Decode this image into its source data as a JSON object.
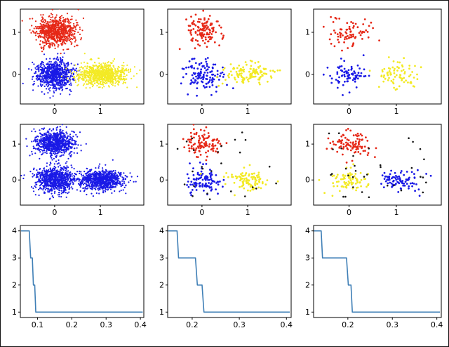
{
  "figure": {
    "background": "#ffffff",
    "border_color": "#111111",
    "rows": 3,
    "cols": 3
  },
  "colors": {
    "red": "#e62817",
    "blue": "#1a1ae6",
    "yellow": "#f3ea25",
    "black": "#161616",
    "line": "#3f7fb6",
    "axis": "#000000"
  },
  "chart_data": [
    {
      "name": "scatter-dense-3clusters",
      "type": "scatter",
      "seed": 11,
      "xlim": [
        -0.75,
        1.95
      ],
      "ylim": [
        -0.7,
        1.55
      ],
      "xticks": [
        0,
        1
      ],
      "yticks": [
        0,
        1
      ],
      "clusters": [
        {
          "label": "red-cluster",
          "color": "#e62817",
          "dist": "normal",
          "cx": 0.02,
          "cy": 1.03,
          "sx": 0.21,
          "sy": 0.17,
          "n": 800,
          "r": 1.1
        },
        {
          "label": "blue-cluster",
          "color": "#1a1ae6",
          "dist": "normal",
          "cx": 0.0,
          "cy": 0.0,
          "sx": 0.21,
          "sy": 0.17,
          "n": 800,
          "r": 1.1
        },
        {
          "label": "yellow-cluster",
          "color": "#f3ea25",
          "dist": "normal",
          "cx": 1.03,
          "cy": 0.0,
          "sx": 0.27,
          "sy": 0.13,
          "n": 800,
          "r": 1.1
        }
      ]
    },
    {
      "name": "scatter-sample-3clusters",
      "type": "scatter",
      "seed": 23,
      "xlim": [
        -0.75,
        1.95
      ],
      "ylim": [
        -0.7,
        1.55
      ],
      "xticks": [
        0,
        1
      ],
      "yticks": [
        0,
        1
      ],
      "clusters": [
        {
          "label": "red-cluster",
          "color": "#e62817",
          "dist": "normal",
          "cx": 0.03,
          "cy": 1.03,
          "sx": 0.2,
          "sy": 0.19,
          "n": 120,
          "r": 1.4
        },
        {
          "label": "blue-cluster",
          "color": "#1a1ae6",
          "dist": "normal",
          "cx": 0.0,
          "cy": -0.02,
          "sx": 0.2,
          "sy": 0.19,
          "n": 120,
          "r": 1.4
        },
        {
          "label": "yellow-cluster",
          "color": "#f3ea25",
          "dist": "normal",
          "cx": 1.02,
          "cy": 0.0,
          "sx": 0.24,
          "sy": 0.14,
          "n": 120,
          "r": 1.4
        }
      ]
    },
    {
      "name": "scatter-small-sample-3clusters",
      "type": "scatter",
      "seed": 37,
      "xlim": [
        -0.75,
        1.95
      ],
      "ylim": [
        -0.7,
        1.55
      ],
      "xticks": [
        0,
        1
      ],
      "yticks": [
        0,
        1
      ],
      "clusters": [
        {
          "label": "red-cluster",
          "color": "#e62817",
          "dist": "normal",
          "cx": 0.03,
          "cy": 1.02,
          "sx": 0.21,
          "sy": 0.18,
          "n": 78,
          "r": 1.4
        },
        {
          "label": "blue-cluster",
          "color": "#1a1ae6",
          "dist": "normal",
          "cx": 0.0,
          "cy": -0.02,
          "sx": 0.2,
          "sy": 0.17,
          "n": 78,
          "r": 1.4
        },
        {
          "label": "yellow-cluster",
          "color": "#f3ea25",
          "dist": "normal",
          "cx": 1.03,
          "cy": -0.02,
          "sx": 0.24,
          "sy": 0.14,
          "n": 78,
          "r": 1.4
        }
      ]
    },
    {
      "name": "scatter-dense-unlabeled",
      "type": "scatter",
      "seed": 47,
      "xlim": [
        -0.75,
        1.95
      ],
      "ylim": [
        -0.7,
        1.55
      ],
      "xticks": [
        0,
        1
      ],
      "yticks": [
        0,
        1
      ],
      "clusters": [
        {
          "label": "blue-cluster-top",
          "color": "#1a1ae6",
          "dist": "normal",
          "cx": 0.02,
          "cy": 1.03,
          "sx": 0.21,
          "sy": 0.18,
          "n": 800,
          "r": 1.1
        },
        {
          "label": "blue-cluster-left",
          "color": "#1a1ae6",
          "dist": "normal",
          "cx": 0.0,
          "cy": 0.0,
          "sx": 0.21,
          "sy": 0.18,
          "n": 800,
          "r": 1.1
        },
        {
          "label": "blue-cluster-right",
          "color": "#1a1ae6",
          "dist": "normal",
          "cx": 1.03,
          "cy": 0.0,
          "sx": 0.26,
          "sy": 0.14,
          "n": 800,
          "r": 1.1
        }
      ]
    },
    {
      "name": "scatter-clustered-with-noise",
      "type": "scatter",
      "seed": 59,
      "xlim": [
        -0.75,
        1.95
      ],
      "ylim": [
        -0.7,
        1.55
      ],
      "xticks": [
        0,
        1
      ],
      "yticks": [
        0,
        1
      ],
      "clusters": [
        {
          "label": "red-cluster",
          "color": "#e62817",
          "dist": "normal",
          "cx": 0.03,
          "cy": 1.02,
          "sx": 0.2,
          "sy": 0.18,
          "n": 105,
          "r": 1.4
        },
        {
          "label": "blue-cluster",
          "color": "#1a1ae6",
          "dist": "normal",
          "cx": 0.0,
          "cy": -0.02,
          "sx": 0.2,
          "sy": 0.18,
          "n": 105,
          "r": 1.4
        },
        {
          "label": "yellow-cluster",
          "color": "#f3ea25",
          "dist": "normal",
          "cx": 1.02,
          "cy": 0.0,
          "sx": 0.24,
          "sy": 0.14,
          "n": 105,
          "r": 1.4
        },
        {
          "label": "noise-points",
          "color": "#161616",
          "dist": "uniform",
          "x0": -0.6,
          "x1": 1.8,
          "y0": -0.6,
          "y1": 1.45,
          "n": 26,
          "r": 1.3
        }
      ]
    },
    {
      "name": "scatter-clustered-with-noise-2",
      "type": "scatter",
      "seed": 71,
      "xlim": [
        -0.75,
        1.95
      ],
      "ylim": [
        -0.7,
        1.55
      ],
      "xticks": [
        0,
        1
      ],
      "yticks": [
        0,
        1
      ],
      "clusters": [
        {
          "label": "red-cluster",
          "color": "#e62817",
          "dist": "normal",
          "cx": 0.04,
          "cy": 1.0,
          "sx": 0.23,
          "sy": 0.17,
          "n": 95,
          "r": 1.4
        },
        {
          "label": "yellow-cluster",
          "color": "#f3ea25",
          "dist": "normal",
          "cx": 0.03,
          "cy": 0.0,
          "sx": 0.22,
          "sy": 0.15,
          "n": 82,
          "r": 1.4
        },
        {
          "label": "blue-cluster",
          "color": "#1a1ae6",
          "dist": "normal",
          "cx": 1.05,
          "cy": 0.0,
          "sx": 0.22,
          "sy": 0.15,
          "n": 85,
          "r": 1.4
        },
        {
          "label": "noise-points",
          "color": "#161616",
          "dist": "uniform",
          "x0": -0.62,
          "x1": 1.85,
          "y0": -0.6,
          "y1": 1.48,
          "n": 34,
          "r": 1.3
        }
      ]
    },
    {
      "name": "line-clusters-vs-eps-1",
      "type": "line",
      "color": "#3f7fb6",
      "xlim": [
        0.05,
        0.41
      ],
      "ylim": [
        0.8,
        4.2
      ],
      "xticks": [
        0.1,
        0.2,
        0.3,
        0.4
      ],
      "yticks": [
        1,
        2,
        3,
        4
      ],
      "points": [
        [
          0.052,
          4
        ],
        [
          0.076,
          4
        ],
        [
          0.08,
          3
        ],
        [
          0.085,
          3
        ],
        [
          0.088,
          2
        ],
        [
          0.092,
          2
        ],
        [
          0.095,
          1
        ],
        [
          0.407,
          1
        ]
      ]
    },
    {
      "name": "line-clusters-vs-eps-2",
      "type": "line",
      "color": "#3f7fb6",
      "xlim": [
        0.148,
        0.41
      ],
      "ylim": [
        0.8,
        4.2
      ],
      "xticks": [
        0.2,
        0.3,
        0.4
      ],
      "yticks": [
        1,
        2,
        3,
        4
      ],
      "points": [
        [
          0.149,
          4
        ],
        [
          0.168,
          4
        ],
        [
          0.171,
          3
        ],
        [
          0.207,
          3
        ],
        [
          0.211,
          2
        ],
        [
          0.221,
          2
        ],
        [
          0.225,
          1
        ],
        [
          0.407,
          1
        ]
      ]
    },
    {
      "name": "line-clusters-vs-eps-3",
      "type": "line",
      "color": "#3f7fb6",
      "xlim": [
        0.123,
        0.41
      ],
      "ylim": [
        0.8,
        4.2
      ],
      "xticks": [
        0.2,
        0.3,
        0.4
      ],
      "yticks": [
        1,
        2,
        3,
        4
      ],
      "points": [
        [
          0.124,
          4
        ],
        [
          0.14,
          4
        ],
        [
          0.143,
          3
        ],
        [
          0.197,
          3
        ],
        [
          0.201,
          2
        ],
        [
          0.207,
          2
        ],
        [
          0.21,
          1
        ],
        [
          0.407,
          1
        ]
      ]
    }
  ]
}
